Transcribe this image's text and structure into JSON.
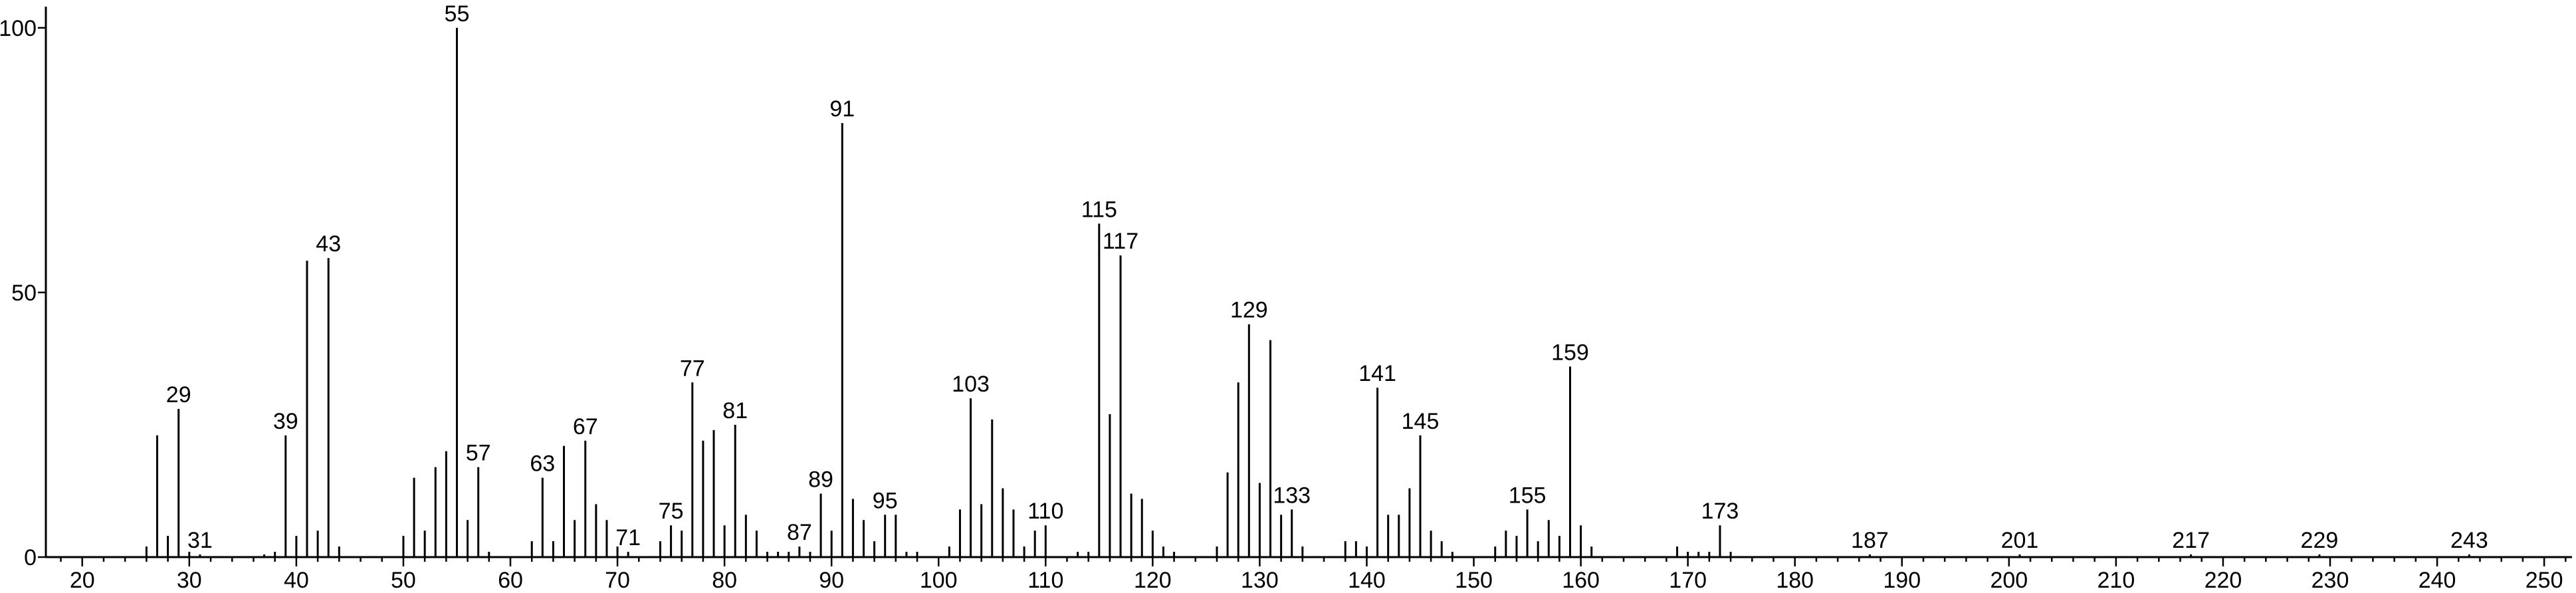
{
  "chart_data": {
    "type": "stem",
    "x": [
      26,
      27,
      28,
      29,
      30,
      31,
      37,
      38,
      39,
      40,
      41,
      42,
      43,
      44,
      50,
      51,
      52,
      53,
      54,
      55,
      56,
      57,
      58,
      62,
      63,
      64,
      65,
      66,
      67,
      68,
      69,
      70,
      71,
      74,
      75,
      76,
      77,
      78,
      79,
      80,
      81,
      82,
      83,
      84,
      85,
      86,
      87,
      88,
      89,
      90,
      91,
      92,
      93,
      94,
      95,
      96,
      97,
      98,
      101,
      102,
      103,
      104,
      105,
      106,
      107,
      108,
      109,
      110,
      113,
      114,
      115,
      116,
      117,
      118,
      119,
      120,
      121,
      122,
      126,
      127,
      128,
      129,
      130,
      131,
      132,
      133,
      134,
      138,
      139,
      140,
      141,
      142,
      143,
      144,
      145,
      146,
      147,
      148,
      152,
      153,
      154,
      155,
      156,
      157,
      158,
      159,
      160,
      161,
      169,
      170,
      171,
      172,
      173,
      174,
      187,
      201,
      217,
      229,
      243
    ],
    "values": [
      2,
      23,
      4,
      28,
      1,
      0.5,
      0.5,
      1,
      23,
      4,
      56,
      5,
      56.5,
      2,
      4,
      15,
      5,
      17,
      20,
      100,
      7,
      17,
      1,
      3,
      15,
      3,
      21,
      7,
      22,
      10,
      7,
      2,
      1,
      3,
      6,
      5,
      33,
      22,
      24,
      6,
      25,
      8,
      5,
      1,
      1,
      1,
      2,
      1,
      12,
      5,
      82,
      11,
      7,
      3,
      8,
      8,
      1,
      1,
      2,
      9,
      30,
      10,
      26,
      13,
      9,
      2,
      5,
      6,
      1,
      1,
      63,
      27,
      57,
      12,
      11,
      5,
      2,
      1,
      2,
      16,
      33,
      44,
      14,
      41,
      8,
      9,
      2,
      3,
      3,
      2,
      32,
      8,
      8,
      13,
      23,
      5,
      3,
      1,
      2,
      5,
      4,
      9,
      3,
      7,
      4,
      36,
      6,
      2,
      2,
      1,
      1,
      1,
      6,
      1,
      0.5,
      0.5,
      0.5,
      0.5,
      0.5
    ],
    "labeled": [
      29,
      31,
      39,
      43,
      55,
      57,
      63,
      67,
      71,
      75,
      77,
      81,
      87,
      89,
      91,
      95,
      103,
      110,
      115,
      117,
      129,
      133,
      141,
      145,
      155,
      159,
      173,
      187,
      201,
      217,
      229,
      243
    ],
    "color": "#000000",
    "xlim": [
      16.6,
      252.6
    ],
    "ylim": [
      0,
      104
    ],
    "xticks": [
      20,
      30,
      40,
      50,
      60,
      70,
      80,
      90,
      100,
      110,
      120,
      130,
      140,
      150,
      160,
      170,
      180,
      190,
      200,
      210,
      220,
      230,
      240,
      250
    ],
    "xminorticks": [
      18,
      22,
      24,
      26,
      28,
      32,
      34,
      36,
      38,
      42,
      44,
      46,
      48,
      52,
      54,
      56,
      58,
      62,
      64,
      66,
      68,
      72,
      74,
      76,
      78,
      82,
      84,
      86,
      88,
      92,
      94,
      96,
      98,
      102,
      104,
      106,
      108,
      112,
      114,
      116,
      118,
      122,
      124,
      126,
      128,
      132,
      134,
      136,
      138,
      142,
      144,
      146,
      148,
      152,
      154,
      156,
      158,
      162,
      164,
      166,
      168,
      172,
      174,
      176,
      178,
      182,
      184,
      186,
      188,
      192,
      194,
      196,
      198,
      202,
      204,
      206,
      208,
      212,
      214,
      216,
      218,
      222,
      224,
      226,
      228,
      232,
      234,
      236,
      238,
      242,
      244,
      246,
      248,
      252
    ],
    "yticks": [
      0,
      50,
      100
    ]
  }
}
